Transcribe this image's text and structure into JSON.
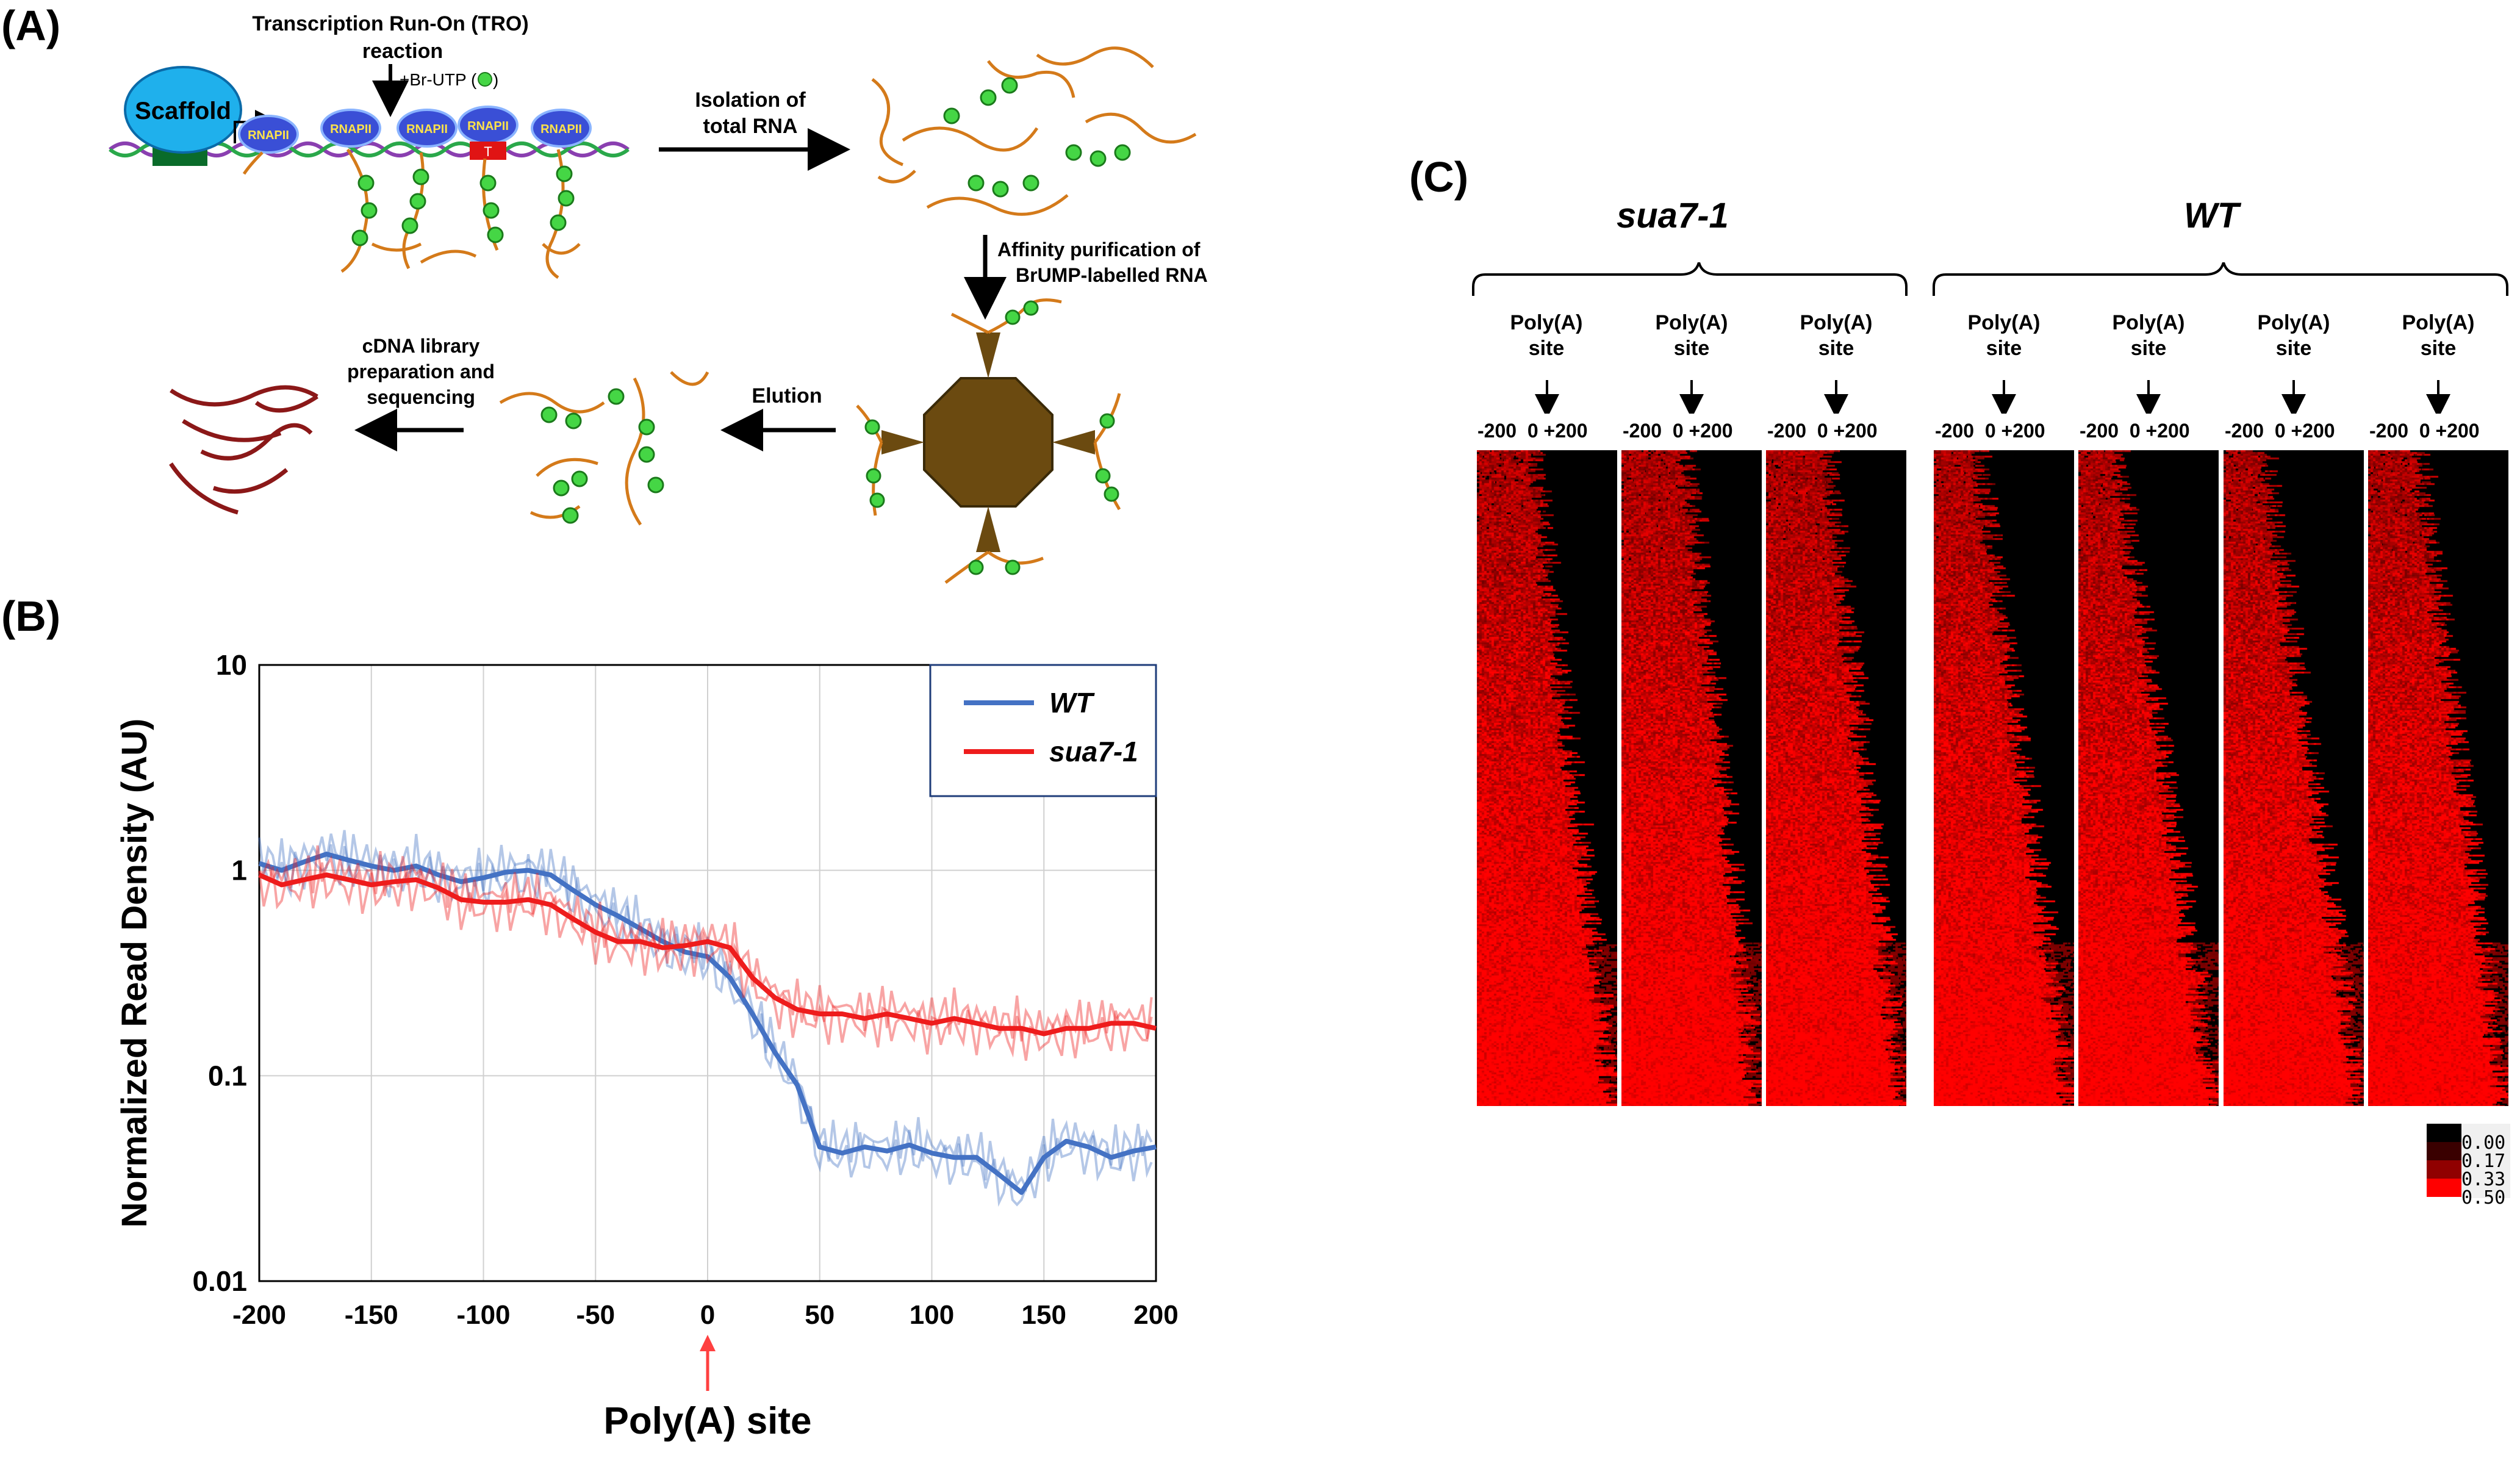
{
  "figure": {
    "panel_a": {
      "label": "(A)",
      "tro_title": "Transcription Run-On (TRO)",
      "tro_title2": "reaction",
      "br_utp": "+Br-UTP (",
      "br_utp_close": ")",
      "scaffold": "Scaffold",
      "rnap": "RNAPII",
      "t_mark": "T",
      "step_isolation": "Isolation of",
      "step_isolation2": "total RNA",
      "step_affinity": "Affinity purification of",
      "step_affinity2": "BrUMP-labelled RNA",
      "step_elution": "Elution",
      "step_cdna": "cDNA library",
      "step_cdna2": "preparation and",
      "step_cdna3": "sequencing"
    },
    "panel_b": {
      "label": "(B)",
      "arrow_label": "Poly(A) site"
    },
    "panel_c": {
      "label": "(C)",
      "group1": "sua7-1",
      "group2": "WT",
      "col_label_line1": "Poly(A)",
      "col_label_line2": "site",
      "pos_label": "-200  0 +200",
      "colorbar": [
        "0.00",
        "0.17",
        "0.33",
        "0.50"
      ]
    }
  },
  "chart_data": {
    "type": "line",
    "ylabel": "Normalized Read Density (AU)",
    "xlabel": "Poly(A) site",
    "yscale": "log",
    "ylim": [
      0.01,
      10
    ],
    "xlim": [
      -200,
      200
    ],
    "xticks": [
      -200,
      -150,
      -100,
      -50,
      0,
      50,
      100,
      150,
      200
    ],
    "xtick_labels": [
      "-200",
      "-150",
      "-100",
      "-50",
      "0",
      "50",
      "100",
      "150",
      "200"
    ],
    "ytick_labels": [
      "10",
      "1",
      "0.1",
      "0.01"
    ],
    "legend_position": "top-right",
    "series": [
      {
        "name": "WT",
        "color": "#4472c4",
        "x": [
          -200,
          -190,
          -180,
          -170,
          -160,
          -150,
          -140,
          -130,
          -120,
          -110,
          -100,
          -90,
          -80,
          -70,
          -60,
          -50,
          -40,
          -30,
          -20,
          -10,
          0,
          10,
          20,
          30,
          40,
          50,
          60,
          70,
          80,
          90,
          100,
          110,
          120,
          130,
          140,
          150,
          160,
          170,
          180,
          190,
          200
        ],
        "values": [
          1.08,
          1.0,
          1.1,
          1.2,
          1.12,
          1.05,
          1.0,
          1.05,
          0.95,
          0.88,
          0.92,
          0.98,
          1.0,
          0.95,
          0.8,
          0.68,
          0.6,
          0.52,
          0.45,
          0.4,
          0.38,
          0.3,
          0.2,
          0.13,
          0.09,
          0.045,
          0.042,
          0.045,
          0.043,
          0.046,
          0.042,
          0.04,
          0.04,
          0.033,
          0.027,
          0.04,
          0.048,
          0.045,
          0.04,
          0.043,
          0.045
        ]
      },
      {
        "name": "sua7-1",
        "color": "#ee1c1c",
        "x": [
          -200,
          -190,
          -180,
          -170,
          -160,
          -150,
          -140,
          -130,
          -120,
          -110,
          -100,
          -90,
          -80,
          -70,
          -60,
          -50,
          -40,
          -30,
          -20,
          -10,
          0,
          10,
          20,
          30,
          40,
          50,
          60,
          70,
          80,
          90,
          100,
          110,
          120,
          130,
          140,
          150,
          160,
          170,
          180,
          190,
          200
        ],
        "values": [
          0.95,
          0.85,
          0.9,
          0.95,
          0.9,
          0.85,
          0.88,
          0.9,
          0.82,
          0.72,
          0.7,
          0.7,
          0.72,
          0.68,
          0.58,
          0.5,
          0.45,
          0.45,
          0.42,
          0.43,
          0.45,
          0.42,
          0.3,
          0.24,
          0.21,
          0.2,
          0.2,
          0.19,
          0.2,
          0.19,
          0.18,
          0.19,
          0.18,
          0.17,
          0.17,
          0.16,
          0.17,
          0.17,
          0.18,
          0.18,
          0.17
        ]
      }
    ]
  }
}
